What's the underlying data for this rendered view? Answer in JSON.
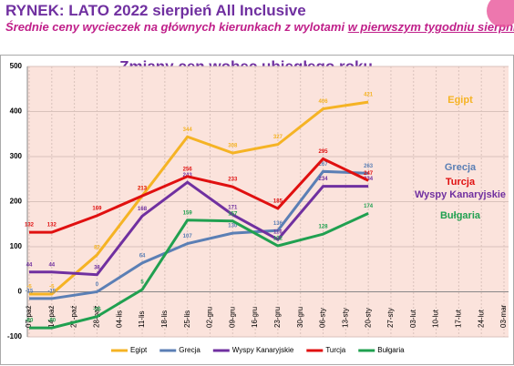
{
  "header": {
    "title": "RYNEK: LATO 2022 sierpień All Inclusive",
    "subtitle_start": "Średnie ceny wycieczek na głównych kierunkach z wylotami ",
    "subtitle_underlined": "w pierwszym tygodniu sierpnia"
  },
  "chart_data": {
    "type": "line",
    "title": "Zmiany cen wobec ubiegłego roku",
    "categories": [
      "07-paź",
      "14-paź",
      "21-paź",
      "28-paź",
      "04-lis",
      "11-lis",
      "18-lis",
      "25-lis",
      "02-gru",
      "09-gru",
      "16-gru",
      "23-gru",
      "30-gru",
      "06-sty",
      "13-sty",
      "20-sty",
      "27-sty",
      "03-lut",
      "10-lut",
      "17-lut",
      "24-lut",
      "03-mar"
    ],
    "ylim": [
      -100,
      500
    ],
    "yticks": [
      -100,
      0,
      100,
      200,
      300,
      400,
      500
    ],
    "grid": true,
    "legend": "bottom",
    "series": [
      {
        "name": "Egipt",
        "color": "#f5b324",
        "x": [
          "07-paź",
          "14-paź",
          "28-paź",
          "11-lis",
          "25-lis",
          "09-gru",
          "23-gru",
          "06-sty",
          "20-sty"
        ],
        "values": [
          -5,
          -5,
          82,
          213,
          344,
          308,
          327,
          406,
          421
        ]
      },
      {
        "name": "Grecja",
        "color": "#5b7fb5",
        "x": [
          "07-paź",
          "14-paź",
          "28-paź",
          "11-lis",
          "25-lis",
          "09-gru",
          "23-gru",
          "06-sty",
          "20-sty"
        ],
        "values": [
          -15,
          -15,
          0,
          64,
          107,
          130,
          136,
          267,
          263
        ]
      },
      {
        "name": "Wyspy Kanaryjskie",
        "color": "#7030a0",
        "x": [
          "07-paź",
          "14-paź",
          "28-paź",
          "11-lis",
          "25-lis",
          "09-gru",
          "23-gru",
          "06-sty",
          "20-sty"
        ],
        "values": [
          44,
          44,
          38,
          168,
          243,
          171,
          116,
          234,
          234
        ]
      },
      {
        "name": "Turcja",
        "color": "#e01010",
        "x": [
          "07-paź",
          "14-paź",
          "28-paź",
          "11-lis",
          "25-lis",
          "09-gru",
          "23-gru",
          "06-sty",
          "20-sty"
        ],
        "values": [
          132,
          132,
          169,
          213,
          256,
          233,
          185,
          295,
          247
        ]
      },
      {
        "name": "Bułgaria",
        "color": "#20a050",
        "x": [
          "07-paź",
          "14-paź",
          "28-paź",
          "11-lis",
          "25-lis",
          "09-gru",
          "23-gru",
          "06-sty",
          "20-sty"
        ],
        "values": [
          -80,
          -80,
          -55,
          5,
          159,
          157,
          102,
          128,
          174
        ]
      }
    ]
  }
}
